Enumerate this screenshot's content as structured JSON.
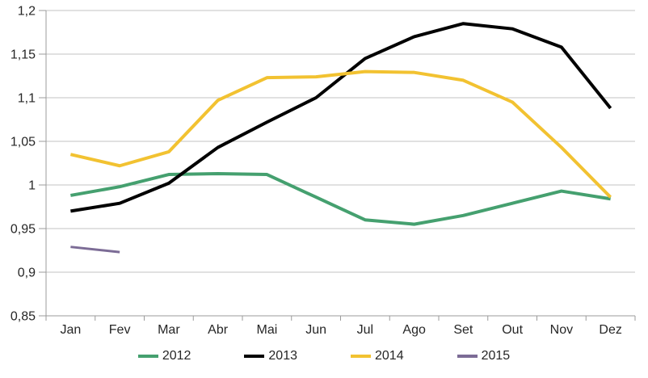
{
  "chart_data": {
    "type": "line",
    "title": "",
    "xlabel": "",
    "ylabel": "",
    "categories": [
      "Jan",
      "Fev",
      "Mar",
      "Abr",
      "Mai",
      "Jun",
      "Jul",
      "Ago",
      "Set",
      "Out",
      "Nov",
      "Dez"
    ],
    "series": [
      {
        "name": "2012",
        "color": "#45A06F",
        "values": [
          0.988,
          0.998,
          1.012,
          1.013,
          1.012,
          0.986,
          0.96,
          0.955,
          0.965,
          0.979,
          0.993,
          0.984
        ]
      },
      {
        "name": "2013",
        "color": "#000000",
        "values": [
          0.97,
          0.979,
          1.002,
          1.043,
          1.072,
          1.1,
          1.145,
          1.17,
          1.185,
          1.179,
          1.158,
          1.088
        ]
      },
      {
        "name": "2014",
        "color": "#F2C231",
        "values": [
          1.035,
          1.022,
          1.038,
          1.097,
          1.123,
          1.124,
          1.13,
          1.129,
          1.12,
          1.095,
          1.043,
          0.986
        ]
      },
      {
        "name": "2015",
        "color": "#7C6C96",
        "values": [
          0.929,
          0.923
        ]
      }
    ],
    "ylim": [
      0.85,
      1.2
    ],
    "ytick_step": 0.05,
    "ytick_labels": [
      "1,2",
      "1,15",
      "1,1",
      "1,05",
      "1",
      "0,95",
      "0,9",
      "0,85"
    ],
    "grid": true,
    "legend_position": "bottom"
  },
  "legend": {
    "items": [
      "2012",
      "2013",
      "2014",
      "2015"
    ]
  },
  "colors": {
    "background": "#FFFFFF",
    "gridline": "#C3C3C3",
    "axis": "#9B9B9B",
    "tick_text": "#262626"
  }
}
